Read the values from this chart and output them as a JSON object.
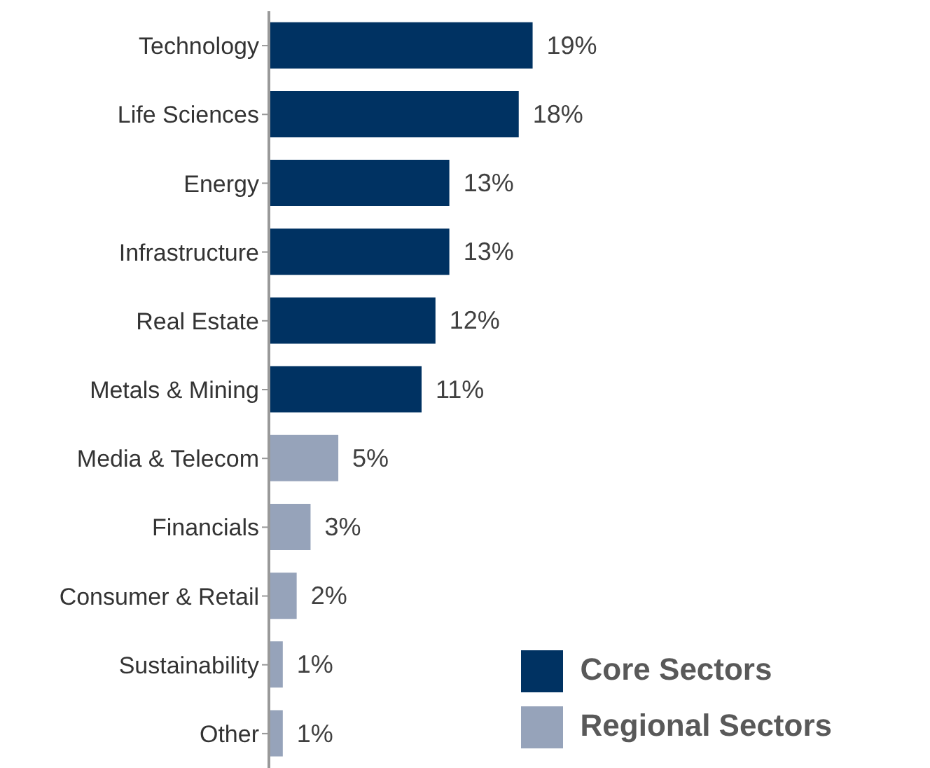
{
  "chart_data": {
    "type": "bar",
    "orientation": "horizontal",
    "stacked": true,
    "categories": [
      "Technology",
      "Life Sciences",
      "Energy",
      "Infrastructure",
      "Real Estate",
      "Metals & Mining",
      "Media & Telecom",
      "Financials",
      "Consumer & Retail",
      "Sustainability",
      "Other"
    ],
    "series": [
      {
        "name": "Core Sectors",
        "color": "#003262",
        "values": [
          19,
          18,
          13,
          13,
          12,
          11,
          null,
          null,
          null,
          null,
          null
        ],
        "value_labels": [
          "19%",
          "18%",
          "13%",
          "13%",
          "12%",
          "11%",
          null,
          null,
          null,
          null,
          null
        ]
      },
      {
        "name": "Regional Sectors",
        "color": "#96a3ba",
        "values": [
          null,
          null,
          null,
          null,
          null,
          null,
          5,
          3,
          2,
          1,
          1
        ],
        "value_labels": [
          null,
          null,
          null,
          null,
          null,
          null,
          "5%",
          "3%",
          "2%",
          "1%",
          "1%"
        ]
      }
    ],
    "legend": "bottom right"
  }
}
